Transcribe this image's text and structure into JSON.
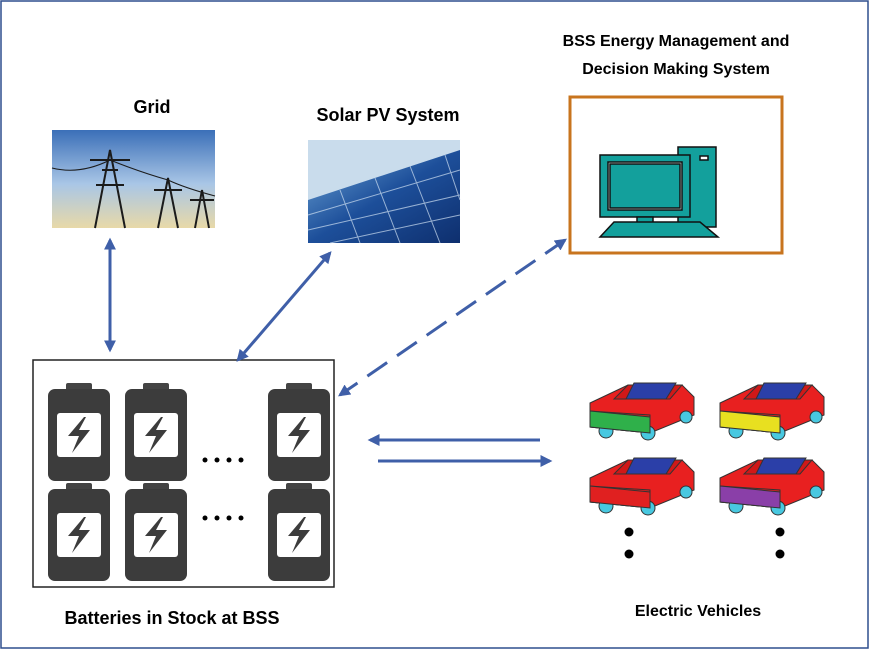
{
  "nodes": {
    "grid": {
      "label": "Grid"
    },
    "solar": {
      "label": "Solar PV System"
    },
    "bss": {
      "label_lines": [
        "BSS Energy Management and",
        "Decision Making System"
      ]
    },
    "batteries": {
      "label": "Batteries in Stock at BSS"
    },
    "vehicles": {
      "label": "Electric Vehicles"
    }
  }
}
